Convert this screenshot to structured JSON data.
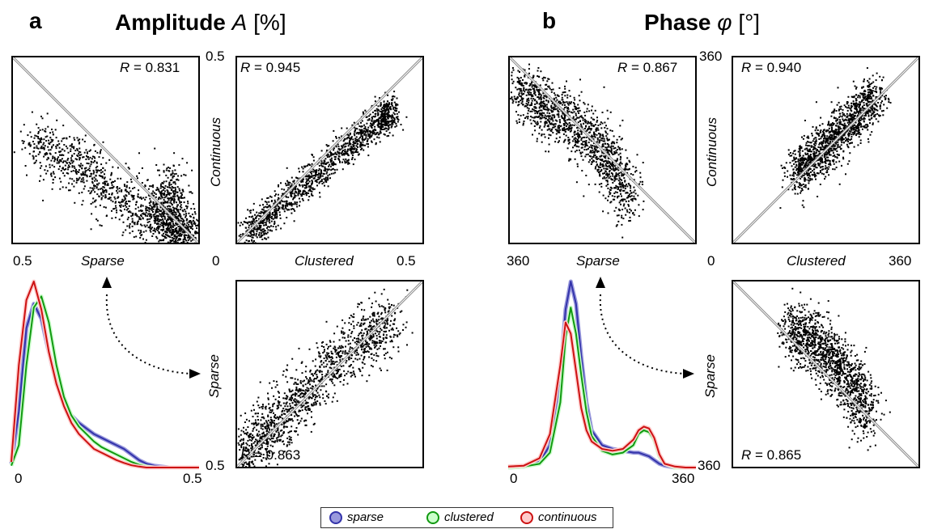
{
  "panel_a": {
    "letter": "a",
    "title_prefix": "Amplitude ",
    "title_var": "A",
    "title_unit": " [%]",
    "top_left": {
      "r_label": "R",
      "r_value": " = 0.831",
      "xlabel": "Sparse",
      "x_min_label": "0.5"
    },
    "top_right": {
      "r_label": "R",
      "r_value": " = 0.945",
      "ylabel": "Continuous",
      "xlabel": "Clustered",
      "y_max_label": "0.5",
      "x_min_label": "0",
      "x_max_label": "0.5"
    },
    "bottom_right": {
      "r_label": "R",
      "r_value": " = 0.863",
      "ylabel": "Sparse",
      "y_bottom_label": "0.5"
    },
    "hist": {
      "x_min_label": "0",
      "x_max_label": "0.5"
    }
  },
  "panel_b": {
    "letter": "b",
    "title_prefix": "Phase ",
    "title_var": "φ",
    "title_unit": " [°]",
    "top_left": {
      "r_label": "R",
      "r_value": " = 0.867",
      "xlabel": "Sparse",
      "x_min_label": "360"
    },
    "top_right": {
      "r_label": "R",
      "r_value": " = 0.940",
      "ylabel": "Continuous",
      "xlabel": "Clustered",
      "y_max_label": "360",
      "x_min_label": "0",
      "x_max_label": "360"
    },
    "bottom_right": {
      "r_label": "R",
      "r_value": " = 0.865",
      "ylabel": "Sparse",
      "y_bottom_label": "360"
    },
    "hist": {
      "x_min_label": "0",
      "x_max_label": "360"
    }
  },
  "legend": {
    "items": [
      {
        "label": "sparse",
        "color": "#3333aa",
        "fill": "#9999dd"
      },
      {
        "label": "clustered",
        "color": "#119911",
        "fill": "#ccffcc"
      },
      {
        "label": "continuous",
        "color": "#cc1111",
        "fill": "#ffcccc"
      }
    ]
  },
  "chart_data": [
    {
      "type": "scatter",
      "panel": "a",
      "title": "Amplitude A [%]",
      "subplots": [
        {
          "name": "top-left",
          "xlabel": "Sparse",
          "r": 0.831,
          "xlim": [
            0.5,
            0
          ],
          "ylim": [
            0,
            0.5
          ],
          "band": [
            [
              0.45,
              0.27
            ],
            [
              0.35,
              0.23
            ],
            [
              0.25,
              0.15
            ],
            [
              0.15,
              0.08
            ],
            [
              0.08,
              0.05
            ],
            [
              0.05,
              0.02
            ],
            [
              0.02,
              0.02
            ]
          ],
          "spread": 0.04,
          "cluster": {
            "center": [
              0.08,
              0.12
            ],
            "spread_x": 0.025,
            "spread_y": 0.05
          }
        },
        {
          "name": "top-right",
          "xlabel": "Clustered",
          "ylabel": "Continuous",
          "r": 0.945,
          "xlim": [
            0,
            0.5
          ],
          "ylim": [
            0,
            0.5
          ],
          "band": [
            [
              0.02,
              0.02
            ],
            [
              0.1,
              0.09
            ],
            [
              0.2,
              0.18
            ],
            [
              0.3,
              0.26
            ],
            [
              0.38,
              0.33
            ],
            [
              0.42,
              0.36
            ]
          ],
          "spread": 0.022
        },
        {
          "name": "bottom-right",
          "ylabel": "Sparse",
          "r": 0.863,
          "xlim": [
            0,
            0.5
          ],
          "ylim": [
            0,
            0.5
          ],
          "band": [
            [
              0.01,
              0.03
            ],
            [
              0.08,
              0.1
            ],
            [
              0.15,
              0.17
            ],
            [
              0.25,
              0.27
            ],
            [
              0.35,
              0.35
            ],
            [
              0.42,
              0.4
            ]
          ],
          "spread": 0.04
        }
      ]
    },
    {
      "type": "line",
      "panel": "a",
      "xlim": [
        0,
        0.5
      ],
      "x": [
        0,
        0.02,
        0.04,
        0.06,
        0.08,
        0.1,
        0.12,
        0.14,
        0.16,
        0.18,
        0.2,
        0.22,
        0.24,
        0.26,
        0.28,
        0.3,
        0.32,
        0.34,
        0.36,
        0.38,
        0.4,
        0.42,
        0.44,
        0.46,
        0.48,
        0.5
      ],
      "series": [
        {
          "name": "sparse",
          "values": [
            0.02,
            0.3,
            0.75,
            0.88,
            0.8,
            0.62,
            0.45,
            0.34,
            0.28,
            0.24,
            0.21,
            0.18,
            0.16,
            0.14,
            0.12,
            0.1,
            0.07,
            0.04,
            0.02,
            0.01,
            0.005,
            0,
            0,
            0,
            0,
            0
          ]
        },
        {
          "name": "clustered",
          "values": [
            0.01,
            0.12,
            0.55,
            0.86,
            0.92,
            0.78,
            0.55,
            0.38,
            0.28,
            0.22,
            0.18,
            0.14,
            0.11,
            0.09,
            0.07,
            0.05,
            0.03,
            0.015,
            0.005,
            0,
            0,
            0,
            0,
            0,
            0,
            0
          ]
        },
        {
          "name": "continuous",
          "values": [
            0.03,
            0.55,
            0.9,
            1.0,
            0.85,
            0.62,
            0.45,
            0.33,
            0.24,
            0.18,
            0.14,
            0.1,
            0.08,
            0.06,
            0.04,
            0.025,
            0.012,
            0.005,
            0,
            0,
            0,
            0,
            0,
            0,
            0,
            0
          ]
        }
      ]
    },
    {
      "type": "scatter",
      "panel": "b",
      "title": "Phase φ [°]",
      "subplots": [
        {
          "name": "top-left",
          "xlabel": "Sparse",
          "r": 0.867,
          "xlim": [
            360,
            0
          ],
          "ylim": [
            0,
            360
          ],
          "band": [
            [
              350,
              300
            ],
            [
              300,
              270
            ],
            [
              250,
              240
            ],
            [
              200,
              200
            ],
            [
              160,
              150
            ],
            [
              130,
              80
            ]
          ],
          "spread": 28
        },
        {
          "name": "top-right",
          "xlabel": "Clustered",
          "ylabel": "Continuous",
          "r": 0.94,
          "xlim": [
            0,
            360
          ],
          "ylim": [
            0,
            360
          ],
          "band": [
            [
              120,
              130
            ],
            [
              160,
              170
            ],
            [
              200,
              210
            ],
            [
              240,
              250
            ],
            [
              280,
              290
            ]
          ],
          "spread": 22
        },
        {
          "name": "bottom-right",
          "ylabel": "Sparse",
          "r": 0.865,
          "xlim": [
            0,
            360
          ],
          "ylim": [
            360,
            0
          ],
          "band": [
            [
              110,
              90
            ],
            [
              150,
              110
            ],
            [
              190,
              150
            ],
            [
              230,
              200
            ],
            [
              260,
              260
            ]
          ],
          "spread": 28
        }
      ]
    },
    {
      "type": "line",
      "panel": "b",
      "xlim": [
        0,
        360
      ],
      "x": [
        0,
        30,
        60,
        80,
        100,
        110,
        120,
        130,
        140,
        150,
        160,
        180,
        200,
        220,
        240,
        250,
        260,
        270,
        280,
        290,
        300,
        320,
        340,
        360
      ],
      "series": [
        {
          "name": "sparse",
          "values": [
            0,
            0.005,
            0.03,
            0.12,
            0.5,
            0.85,
            1.0,
            0.88,
            0.6,
            0.35,
            0.2,
            0.12,
            0.1,
            0.09,
            0.08,
            0.08,
            0.07,
            0.06,
            0.04,
            0.02,
            0.01,
            0,
            0,
            0
          ]
        },
        {
          "name": "clustered",
          "values": [
            0,
            0.005,
            0.02,
            0.08,
            0.35,
            0.7,
            0.86,
            0.72,
            0.5,
            0.3,
            0.17,
            0.09,
            0.07,
            0.08,
            0.12,
            0.18,
            0.2,
            0.19,
            0.15,
            0.06,
            0.02,
            0,
            0,
            0
          ]
        },
        {
          "name": "continuous",
          "values": [
            0.005,
            0.01,
            0.05,
            0.18,
            0.55,
            0.78,
            0.72,
            0.52,
            0.32,
            0.2,
            0.14,
            0.1,
            0.09,
            0.1,
            0.15,
            0.2,
            0.22,
            0.21,
            0.16,
            0.07,
            0.02,
            0.005,
            0,
            0
          ]
        }
      ]
    }
  ]
}
